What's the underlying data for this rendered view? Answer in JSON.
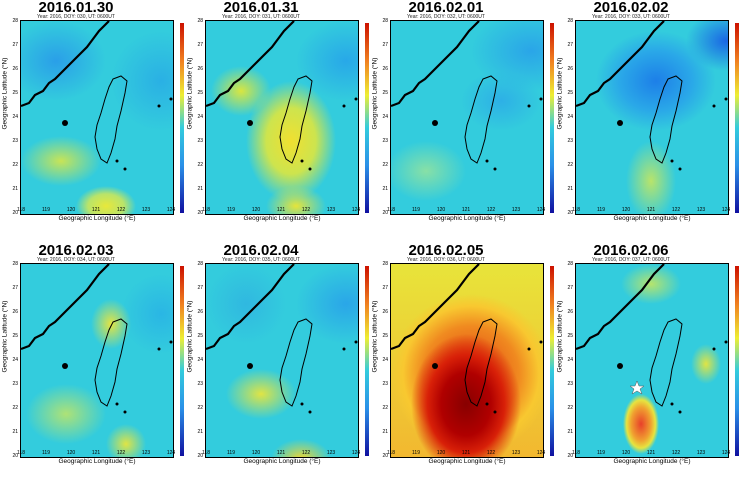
{
  "axes": {
    "ylabel": "Geographic Latitude (°N)",
    "xlabel": "Geographic Longitude (°E)",
    "yticks": [
      "26",
      "25",
      "24",
      "23",
      "22",
      "21",
      "20"
    ],
    "ytop": "28",
    "y2": "27",
    "xticks": [
      "118",
      "119",
      "120",
      "121",
      "122",
      "123",
      "124"
    ]
  },
  "panels": [
    {
      "title": "2016.01.30",
      "subtitle": "Year: 2016, DOY: 030, UT: 0600UT"
    },
    {
      "title": "2016.01.31",
      "subtitle": "Year: 2016, DOY: 031, UT: 0600UT"
    },
    {
      "title": "2016.02.01",
      "subtitle": "Year: 2016, DOY: 032, UT: 0600UT"
    },
    {
      "title": "2016.02.02",
      "subtitle": "Year: 2016, DOY: 033, UT: 0600UT"
    },
    {
      "title": "2016.02.03",
      "subtitle": "Year: 2016, DOY: 034, UT: 0600UT"
    },
    {
      "title": "2016.02.04",
      "subtitle": "Year: 2016, DOY: 035, UT: 0600UT"
    },
    {
      "title": "2016.02.05",
      "subtitle": "Year: 2016, DOY: 036, UT: 0600UT"
    },
    {
      "title": "2016.02.06",
      "subtitle": "Year: 2016, DOY: 037, UT: 0600UT"
    }
  ],
  "colors": {
    "background_field": "#33ccdd",
    "low": "#1155ee",
    "high_yellow": "#eeee33",
    "high_red": "#cc1100",
    "coastline": "#000000"
  },
  "marker": {
    "panel_index": 7,
    "shape": "star-icon"
  }
}
